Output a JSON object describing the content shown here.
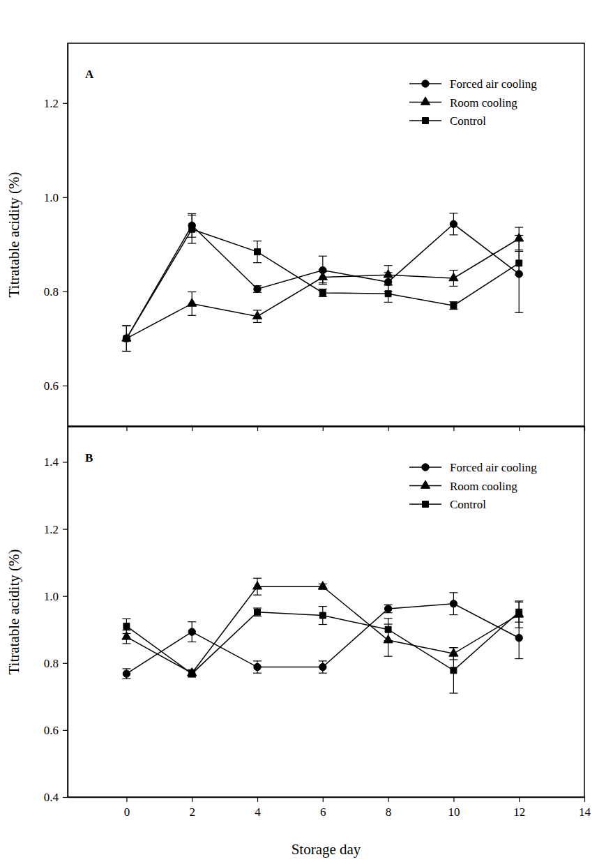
{
  "chart_data": [
    {
      "type": "line",
      "title": "A",
      "y_label": "Titratable acidity (%)",
      "x": [
        0,
        2,
        4,
        6,
        8,
        10,
        12
      ],
      "xlim": [
        -1.8,
        14
      ],
      "xticks": [
        0,
        2,
        4,
        6,
        8,
        10,
        12,
        14
      ],
      "ylim": [
        0.514,
        1.327
      ],
      "yticks": [
        0.6,
        0.8,
        {
          "value": 1,
          "label": "1.0"
        },
        1.2
      ],
      "tick_labels": "y",
      "legend": "upper right",
      "grid": false,
      "series": [
        {
          "name": "Forced air cooling",
          "color": "#000000",
          "marker": "circle",
          "line_style": "solid",
          "values": [
            0.7,
            0.94,
            0.805,
            0.845,
            0.82,
            0.943,
            0.837
          ],
          "errors": [
            0.027,
            0.025,
            0.007,
            0.03,
            0.02,
            0.023,
            0.082
          ]
        },
        {
          "name": "Room cooling",
          "color": "#000000",
          "marker": "triangle",
          "line_style": "solid",
          "values": [
            0.7,
            0.774,
            0.747,
            0.83,
            0.835,
            0.828,
            0.912
          ],
          "errors": [
            0.027,
            0.025,
            0.013,
            0.012,
            0.02,
            0.017,
            0.024
          ]
        },
        {
          "name": "Control",
          "color": "#000000",
          "marker": "square",
          "line_style": "solid",
          "values": [
            0.7,
            0.932,
            0.884,
            0.797,
            0.795,
            0.77,
            0.86
          ],
          "errors": [
            0.027,
            0.03,
            0.023,
            0.008,
            0.018,
            0.008,
            0.025
          ]
        }
      ]
    },
    {
      "type": "line",
      "title": "B",
      "y_label": "Titratable acidity (%)",
      "x_label": "Storage day",
      "x": [
        0,
        2,
        4,
        6,
        8,
        10,
        12
      ],
      "xlim": [
        -1.8,
        14
      ],
      "xticks": [
        0,
        2,
        4,
        6,
        8,
        10,
        12,
        14
      ],
      "ylim": [
        0.4,
        1.505
      ],
      "yticks": [
        0.4,
        0.6,
        0.8,
        {
          "value": 1,
          "label": "1.0"
        },
        1.2,
        1.4
      ],
      "legend": "upper right",
      "grid": false,
      "series": [
        {
          "name": "Forced air cooling",
          "color": "#000000",
          "marker": "circle",
          "line_style": "solid",
          "values": [
            0.768,
            0.893,
            0.788,
            0.788,
            0.962,
            0.977,
            0.875
          ],
          "errors": [
            0.015,
            0.03,
            0.018,
            0.018,
            0.012,
            0.033,
            0.062
          ]
        },
        {
          "name": "Room cooling",
          "color": "#000000",
          "marker": "triangle",
          "line_style": "solid",
          "values": [
            0.878,
            0.77,
            1.028,
            1.028,
            0.868,
            0.828,
            0.945
          ],
          "errors": [
            0.02,
            0.01,
            0.025,
            0.008,
            0.048,
            0.018,
            0.04
          ]
        },
        {
          "name": "Control",
          "color": "#000000",
          "marker": "square",
          "line_style": "solid",
          "values": [
            0.91,
            0.768,
            0.952,
            0.942,
            0.9,
            0.778,
            0.952
          ],
          "errors": [
            0.022,
            0.01,
            0.012,
            0.027,
            0.033,
            0.068,
            0.03
          ]
        }
      ]
    }
  ]
}
